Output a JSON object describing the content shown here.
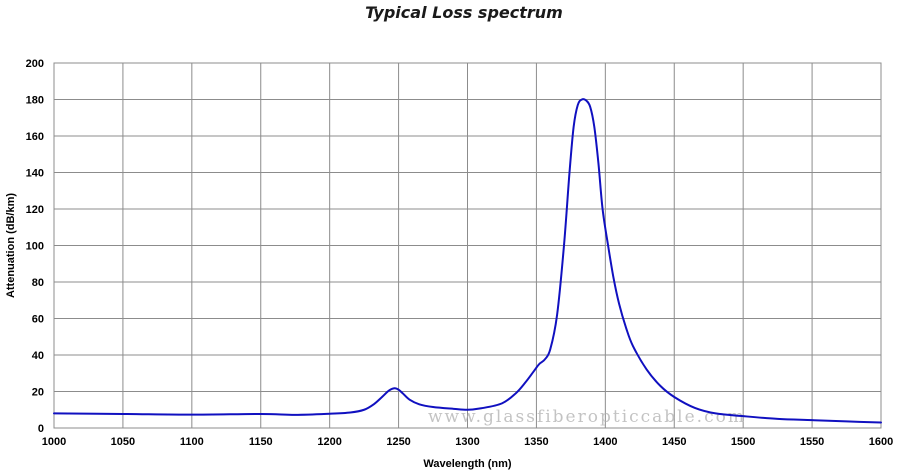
{
  "chart_data": {
    "type": "line",
    "title": "Typical Loss spectrum",
    "xlabel": "Wavelength (nm)",
    "ylabel": "Attenuation (dB/km)",
    "xlim": [
      1000,
      1600
    ],
    "ylim": [
      0,
      200
    ],
    "x_ticks": [
      1000,
      1050,
      1100,
      1150,
      1200,
      1250,
      1300,
      1350,
      1400,
      1450,
      1500,
      1550,
      1600
    ],
    "y_ticks": [
      0,
      20,
      40,
      60,
      80,
      100,
      120,
      140,
      160,
      180,
      200
    ],
    "grid": true,
    "series": [
      {
        "color": "#1010c0",
        "x": [
          1000,
          1050,
          1100,
          1150,
          1175,
          1200,
          1215,
          1225,
          1232,
          1238,
          1243,
          1247,
          1250,
          1253,
          1258,
          1265,
          1275,
          1290,
          1300,
          1310,
          1325,
          1335,
          1342,
          1348,
          1352,
          1356,
          1360,
          1365,
          1370,
          1374,
          1377,
          1380,
          1383,
          1386,
          1389,
          1392,
          1395,
          1398,
          1402,
          1406,
          1410,
          1415,
          1420,
          1430,
          1440,
          1450,
          1465,
          1480,
          1500,
          1525,
          1550,
          1575,
          1600
        ],
        "y": [
          8,
          7.7,
          7.3,
          7.7,
          7.2,
          7.8,
          8.5,
          10,
          13,
          17,
          20.5,
          21.8,
          21,
          19,
          15.5,
          13,
          11.5,
          10.5,
          10,
          10.8,
          13.5,
          19,
          25,
          31,
          35,
          37.5,
          43,
          62,
          100,
          140,
          165,
          177,
          180,
          179.5,
          176,
          165,
          145,
          120,
          100,
          82,
          68,
          55,
          45,
          32,
          23,
          17,
          11,
          8,
          6.5,
          5,
          4.3,
          3.6,
          3
        ]
      }
    ],
    "watermark": "www.glassfiberopticcable.com"
  }
}
